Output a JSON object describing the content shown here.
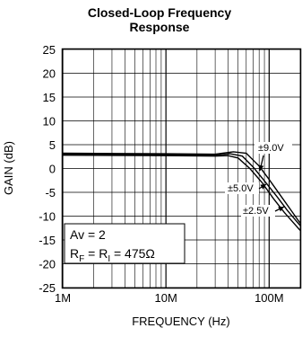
{
  "chart_data": {
    "type": "line",
    "title": "Closed-Loop Frequency Response",
    "xlabel": "FREQUENCY (Hz)",
    "ylabel": "GAIN (dB)",
    "x_scale": "log",
    "xlim": [
      "1M",
      "200M"
    ],
    "ylim": [
      -25,
      25
    ],
    "x_ticks": [
      {
        "value": 1000000,
        "label": "1M"
      },
      {
        "value": 10000000,
        "label": "10M"
      },
      {
        "value": 100000000,
        "label": "100M"
      }
    ],
    "y_ticks": [
      25,
      20,
      15,
      10,
      5,
      0,
      -5,
      -10,
      -15,
      -20,
      -25
    ],
    "grid": true,
    "series": [
      {
        "name": "±9.0V",
        "x": [
          1000000,
          10000000,
          30000000,
          45000000,
          60000000,
          80000000,
          100000000,
          130000000,
          160000000,
          200000000
        ],
        "y": [
          3.2,
          3.1,
          3.0,
          3.5,
          3.2,
          0.5,
          -2.3,
          -5.8,
          -8.5,
          -11.5
        ]
      },
      {
        "name": "±5.0V",
        "x": [
          1000000,
          10000000,
          30000000,
          42000000,
          55000000,
          70000000,
          90000000,
          120000000,
          150000000,
          200000000
        ],
        "y": [
          3.0,
          2.9,
          2.8,
          3.1,
          2.6,
          0.3,
          -2.6,
          -6.0,
          -8.8,
          -12.0
        ]
      },
      {
        "name": "±2.5V",
        "x": [
          1000000,
          10000000,
          30000000,
          40000000,
          50000000,
          65000000,
          85000000,
          110000000,
          140000000,
          200000000
        ],
        "y": [
          2.8,
          2.7,
          2.6,
          2.7,
          2.2,
          0.0,
          -2.9,
          -6.3,
          -9.2,
          -13.0
        ]
      }
    ],
    "annotations": {
      "gain_text": "Av = 2",
      "resistor_prefix": "R",
      "resistor_sub1": "F",
      "resistor_eq": " = R",
      "resistor_sub2": "I",
      "resistor_value": " = 475Ω"
    }
  }
}
